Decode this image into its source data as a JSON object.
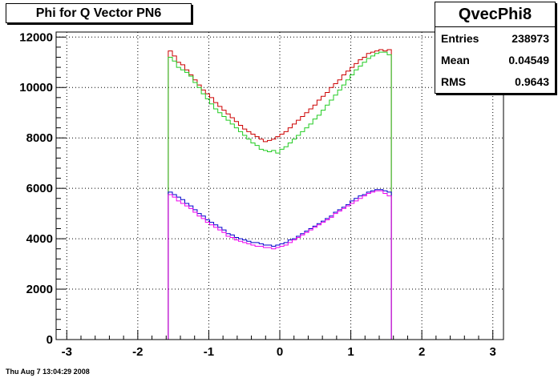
{
  "title": "Phi for Q Vector PN6",
  "stats": {
    "name": "QvecPhi8",
    "rows": [
      {
        "label": "Entries",
        "value": "238973"
      },
      {
        "label": "Mean",
        "value": "0.04549"
      },
      {
        "label": "RMS",
        "value": "0.9643"
      }
    ]
  },
  "footer_date": "Thu Aug  7 13:04:29 2008",
  "chart_data": {
    "type": "line",
    "xlim": [
      -3.15,
      3.15
    ],
    "ylim": [
      0,
      12200
    ],
    "xticks": [
      -3,
      -2,
      -1,
      0,
      1,
      2,
      3
    ],
    "xtick_labels": [
      "-3",
      "-2",
      "-1",
      "0",
      "1",
      "2",
      "3"
    ],
    "yticks": [
      0,
      2000,
      4000,
      6000,
      8000,
      10000,
      12000
    ],
    "ytick_labels": [
      "0",
      "2000",
      "4000",
      "6000",
      "8000",
      "10000",
      "12000"
    ],
    "grid": true,
    "histogram": true,
    "bin_edges": [
      -1.5708,
      1.5708
    ],
    "series": [
      {
        "color": "#cc0000",
        "y": [
          11450,
          11250,
          11000,
          10900,
          10700,
          10500,
          10300,
          10100,
          9900,
          9750,
          9600,
          9400,
          9250,
          9100,
          8950,
          8800,
          8650,
          8500,
          8350,
          8250,
          8150,
          8050,
          7950,
          7850,
          7900,
          7950,
          8050,
          8150,
          8250,
          8400,
          8550,
          8700,
          8850,
          9000,
          9150,
          9300,
          9500,
          9650,
          9800,
          10000,
          10150,
          10300,
          10500,
          10650,
          10800,
          10950,
          11100,
          11200,
          11350,
          11400,
          11450,
          11500,
          11450,
          11500
        ]
      },
      {
        "color": "#22cc22",
        "y": [
          11200,
          11050,
          10800,
          10700,
          10600,
          10450,
          10200,
          10000,
          9750,
          9550,
          9350,
          9150,
          9000,
          8850,
          8700,
          8550,
          8400,
          8250,
          8100,
          7950,
          7800,
          7700,
          7550,
          7500,
          7450,
          7500,
          7400,
          7550,
          7650,
          7800,
          7950,
          8100,
          8250,
          8400,
          8550,
          8750,
          8900,
          9100,
          9300,
          9500,
          9700,
          9900,
          10100,
          10300,
          10500,
          10700,
          10850,
          11000,
          11150,
          11250,
          11350,
          11400,
          11400,
          11300
        ]
      },
      {
        "color": "#0000cc",
        "y": [
          5850,
          5750,
          5650,
          5550,
          5400,
          5300,
          5150,
          5000,
          4900,
          4750,
          4650,
          4550,
          4450,
          4350,
          4200,
          4150,
          4050,
          4000,
          3950,
          3900,
          3850,
          3850,
          3800,
          3750,
          3750,
          3700,
          3750,
          3800,
          3850,
          3950,
          4000,
          4100,
          4200,
          4300,
          4400,
          4500,
          4600,
          4700,
          4800,
          4900,
          5050,
          5150,
          5250,
          5350,
          5500,
          5600,
          5700,
          5750,
          5850,
          5900,
          5950,
          5950,
          5900,
          5850
        ]
      },
      {
        "color": "#ee00ee",
        "y": [
          5750,
          5650,
          5500,
          5400,
          5300,
          5200,
          5050,
          4900,
          4800,
          4650,
          4550,
          4450,
          4350,
          4250,
          4100,
          4050,
          3950,
          3900,
          3850,
          3800,
          3750,
          3700,
          3700,
          3650,
          3650,
          3600,
          3650,
          3700,
          3750,
          3850,
          3950,
          4050,
          4150,
          4250,
          4350,
          4450,
          4550,
          4650,
          4750,
          4850,
          5000,
          5100,
          5200,
          5300,
          5400,
          5500,
          5600,
          5700,
          5800,
          5850,
          5900,
          5900,
          5800,
          5700
        ]
      }
    ]
  }
}
